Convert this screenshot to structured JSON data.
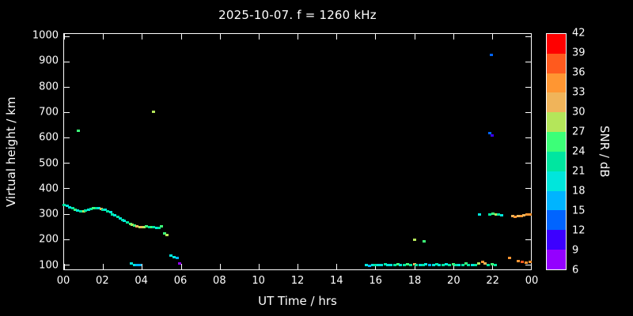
{
  "chart_data": {
    "type": "scatter",
    "title": "2025-10-07. f = 1260 kHz",
    "xlabel": "UT Time / hrs",
    "ylabel": "Virtual height / km",
    "colorbar_label": "SNR / dB",
    "x_range": [
      0,
      24
    ],
    "y_range": [
      80,
      1010
    ],
    "x_tick_labels": [
      "00",
      "02",
      "04",
      "06",
      "08",
      "10",
      "12",
      "14",
      "16",
      "18",
      "20",
      "22",
      "00"
    ],
    "x_tick_hours": [
      0,
      2,
      4,
      6,
      8,
      10,
      12,
      14,
      16,
      18,
      20,
      22,
      24
    ],
    "y_ticks": [
      100,
      200,
      300,
      400,
      500,
      600,
      700,
      800,
      900,
      1000
    ],
    "colorbar_ticks": [
      6,
      9,
      12,
      15,
      18,
      21,
      24,
      27,
      30,
      33,
      36,
      39,
      42
    ],
    "colorbar_colors": [
      "#9400ff",
      "#3c00ff",
      "#0064ff",
      "#00b4ff",
      "#00e6dc",
      "#00e6a0",
      "#3cff78",
      "#b4e65a",
      "#f0b45a",
      "#ff9632",
      "#ff5a1e",
      "#ff0000"
    ],
    "background": "#000000",
    "frame_color": "#ffffff",
    "points_format": "[ut_hour, virtual_height_km, snr_db]",
    "points": [
      [
        0.0,
        336,
        21
      ],
      [
        0.15,
        332,
        18
      ],
      [
        0.3,
        328,
        18
      ],
      [
        0.45,
        322,
        21
      ],
      [
        0.55,
        318,
        24
      ],
      [
        0.7,
        315,
        18
      ],
      [
        0.85,
        312,
        21
      ],
      [
        1.0,
        312,
        27
      ],
      [
        1.1,
        314,
        21
      ],
      [
        1.25,
        317,
        18
      ],
      [
        1.4,
        320,
        21
      ],
      [
        1.5,
        322,
        24
      ],
      [
        1.65,
        323,
        21
      ],
      [
        1.8,
        322,
        18
      ],
      [
        1.9,
        320,
        30
      ],
      [
        2.0,
        318,
        21
      ],
      [
        2.1,
        316,
        18
      ],
      [
        2.25,
        312,
        21
      ],
      [
        2.4,
        308,
        18
      ],
      [
        2.5,
        300,
        21
      ],
      [
        2.6,
        296,
        18
      ],
      [
        2.75,
        290,
        21
      ],
      [
        2.9,
        284,
        18
      ],
      [
        3.0,
        278,
        21
      ],
      [
        3.1,
        272,
        18
      ],
      [
        3.25,
        267,
        21
      ],
      [
        3.4,
        262,
        24
      ],
      [
        3.5,
        258,
        27
      ],
      [
        3.6,
        255,
        24
      ],
      [
        3.75,
        252,
        30
      ],
      [
        3.9,
        250,
        27
      ],
      [
        4.0,
        248,
        30
      ],
      [
        4.1,
        250,
        27
      ],
      [
        4.25,
        252,
        24
      ],
      [
        4.4,
        250,
        21
      ],
      [
        4.5,
        248,
        24
      ],
      [
        4.6,
        250,
        21
      ],
      [
        4.75,
        246,
        18
      ],
      [
        4.9,
        244,
        21
      ],
      [
        5.0,
        252,
        24
      ],
      [
        5.15,
        222,
        24
      ],
      [
        5.3,
        218,
        27
      ],
      [
        3.45,
        104,
        18
      ],
      [
        3.6,
        100,
        18
      ],
      [
        3.75,
        100,
        15
      ],
      [
        3.9,
        98,
        15
      ],
      [
        5.5,
        136,
        18
      ],
      [
        5.65,
        130,
        18
      ],
      [
        5.8,
        126,
        15
      ],
      [
        5.95,
        104,
        8
      ],
      [
        0.72,
        630,
        24
      ],
      [
        4.58,
        705,
        27
      ],
      [
        15.55,
        100,
        18
      ],
      [
        15.7,
        97,
        15
      ],
      [
        15.85,
        100,
        18
      ],
      [
        16.0,
        100,
        21
      ],
      [
        16.15,
        98,
        18
      ],
      [
        16.3,
        100,
        18
      ],
      [
        16.5,
        102,
        21
      ],
      [
        16.65,
        100,
        18
      ],
      [
        16.8,
        98,
        18
      ],
      [
        17.0,
        100,
        21
      ],
      [
        17.15,
        103,
        24
      ],
      [
        17.3,
        100,
        18
      ],
      [
        17.5,
        100,
        21
      ],
      [
        17.65,
        102,
        24
      ],
      [
        17.8,
        100,
        21
      ],
      [
        18.0,
        103,
        30
      ],
      [
        18.1,
        100,
        21
      ],
      [
        18.3,
        98,
        18
      ],
      [
        18.45,
        100,
        21
      ],
      [
        18.6,
        102,
        18
      ],
      [
        18.8,
        100,
        15
      ],
      [
        19.0,
        98,
        18
      ],
      [
        19.15,
        103,
        21
      ],
      [
        19.3,
        100,
        18
      ],
      [
        19.5,
        100,
        21
      ],
      [
        19.65,
        102,
        18
      ],
      [
        19.8,
        100,
        21
      ],
      [
        20.0,
        103,
        24
      ],
      [
        20.15,
        100,
        21
      ],
      [
        20.3,
        98,
        18
      ],
      [
        20.5,
        100,
        21
      ],
      [
        20.65,
        104,
        24
      ],
      [
        20.8,
        100,
        21
      ],
      [
        21.0,
        98,
        18
      ],
      [
        21.15,
        100,
        21
      ],
      [
        21.3,
        105,
        27
      ],
      [
        21.5,
        110,
        33
      ],
      [
        21.65,
        104,
        30
      ],
      [
        21.8,
        100,
        21
      ],
      [
        22.0,
        103,
        24
      ],
      [
        22.15,
        100,
        21
      ],
      [
        18.0,
        200,
        27
      ],
      [
        18.5,
        192,
        24
      ],
      [
        21.95,
        930,
        12
      ],
      [
        21.9,
        620,
        12
      ],
      [
        22.0,
        612,
        9
      ],
      [
        21.35,
        300,
        18
      ],
      [
        21.9,
        298,
        21
      ],
      [
        22.05,
        302,
        24
      ],
      [
        22.2,
        300,
        27
      ],
      [
        22.35,
        298,
        21
      ],
      [
        22.5,
        296,
        18
      ],
      [
        23.05,
        292,
        30
      ],
      [
        23.2,
        290,
        33
      ],
      [
        23.35,
        291,
        30
      ],
      [
        23.5,
        293,
        33
      ],
      [
        23.65,
        295,
        30
      ],
      [
        23.8,
        297,
        33
      ],
      [
        23.95,
        300,
        33
      ],
      [
        22.9,
        128,
        33
      ],
      [
        23.35,
        114,
        33
      ],
      [
        23.55,
        110,
        36
      ],
      [
        23.75,
        108,
        33
      ],
      [
        23.95,
        112,
        33
      ]
    ]
  }
}
